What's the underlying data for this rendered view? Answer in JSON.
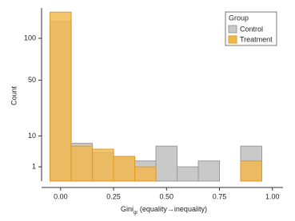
{
  "chart_data": {
    "type": "histogram",
    "y_scale": "sqrt",
    "xlabel": "Gini",
    "xlabel_subscript": "gr",
    "xlabel_suffix": " (equality→inequality)",
    "ylabel": "Count",
    "bins": [
      -0.05,
      0.05,
      0.15,
      0.25,
      0.35,
      0.45,
      0.55,
      0.65,
      0.75,
      0.85,
      0.95
    ],
    "series": [
      {
        "name": "Control",
        "color": "#c9c9c9",
        "edge": "#9a9a9a",
        "values": [
          125,
          7,
          4,
          3,
          2,
          6,
          1,
          2,
          0,
          6
        ]
      },
      {
        "name": "Treatment",
        "color": "#f2b84a",
        "edge": "#e09a20",
        "values": [
          140,
          6,
          5,
          3,
          1,
          0,
          0,
          0,
          0,
          2
        ]
      }
    ],
    "xlim": [
      -0.09,
      1.05
    ],
    "xticks": [
      {
        "value": 0,
        "label": "0.00"
      },
      {
        "value": 0.25,
        "label": "0.25"
      },
      {
        "value": 0.5,
        "label": "0.50"
      },
      {
        "value": 0.75,
        "label": "0.75"
      },
      {
        "value": 1,
        "label": "1.00"
      }
    ],
    "ylim": [
      0,
      147
    ],
    "yticks": [
      1,
      10,
      50,
      100
    ],
    "legend_title": "Group",
    "legend": "top-right"
  }
}
